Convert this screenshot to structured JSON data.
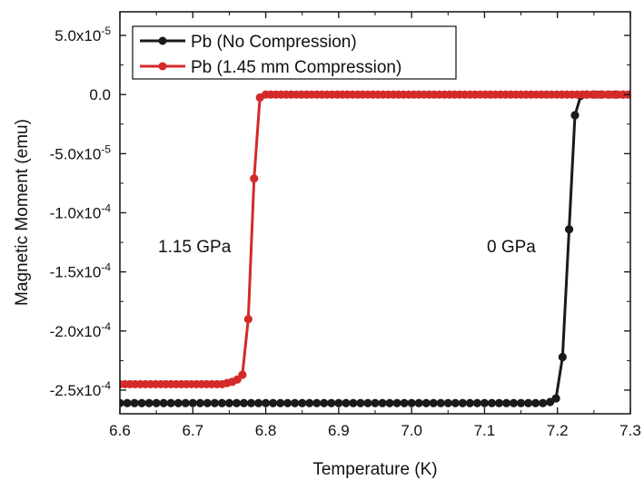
{
  "chart_data": {
    "type": "line",
    "title": "",
    "xlabel": "Temperature (K)",
    "ylabel": "Magnetic Moment (emu)",
    "xlim": [
      6.6,
      7.3
    ],
    "ylim": [
      -0.00027,
      7e-05
    ],
    "x_ticks": [
      6.6,
      6.7,
      6.8,
      6.9,
      7.0,
      7.1,
      7.2,
      7.3
    ],
    "x_tick_labels": [
      "6.6",
      "6.7",
      "6.8",
      "6.9",
      "7.0",
      "7.1",
      "7.2",
      "7.3"
    ],
    "y_ticks": [
      5e-05,
      0.0,
      -5e-05,
      -0.0001,
      -0.00015,
      -0.0002,
      -0.00025
    ],
    "y_tick_labels": [
      "5.0x10-5",
      "0.0",
      "-5.0x10-5",
      "-1.0x10-4",
      "-1.5x10-4",
      "-2.0x10-4",
      "-2.5x10-4"
    ],
    "grid": false,
    "legend_position": "top-left",
    "series": [
      {
        "name": "Pb (No Compression)",
        "color": "#1a1a1a",
        "x": [
          6.6,
          6.61,
          6.62,
          6.63,
          6.64,
          6.65,
          6.66,
          6.67,
          6.68,
          6.69,
          6.7,
          6.71,
          6.72,
          6.73,
          6.74,
          6.75,
          6.76,
          6.77,
          6.78,
          6.79,
          6.8,
          6.81,
          6.82,
          6.83,
          6.84,
          6.85,
          6.86,
          6.87,
          6.88,
          6.89,
          6.9,
          6.91,
          6.92,
          6.93,
          6.94,
          6.95,
          6.96,
          6.97,
          6.98,
          6.99,
          7.0,
          7.01,
          7.02,
          7.03,
          7.04,
          7.05,
          7.06,
          7.07,
          7.08,
          7.09,
          7.1,
          7.11,
          7.12,
          7.13,
          7.14,
          7.15,
          7.16,
          7.17,
          7.18,
          7.19,
          7.198,
          7.207,
          7.216,
          7.224,
          7.232,
          7.24,
          7.25,
          7.26,
          7.27,
          7.28,
          7.29,
          7.3
        ],
        "y": [
          -0.000261,
          -0.000261,
          -0.000261,
          -0.000261,
          -0.000261,
          -0.000261,
          -0.000261,
          -0.000261,
          -0.000261,
          -0.000261,
          -0.000261,
          -0.000261,
          -0.000261,
          -0.000261,
          -0.000261,
          -0.000261,
          -0.000261,
          -0.000261,
          -0.000261,
          -0.000261,
          -0.000261,
          -0.000261,
          -0.000261,
          -0.000261,
          -0.000261,
          -0.000261,
          -0.000261,
          -0.000261,
          -0.000261,
          -0.000261,
          -0.000261,
          -0.000261,
          -0.000261,
          -0.000261,
          -0.000261,
          -0.000261,
          -0.000261,
          -0.000261,
          -0.000261,
          -0.000261,
          -0.000261,
          -0.000261,
          -0.000261,
          -0.000261,
          -0.000261,
          -0.000261,
          -0.000261,
          -0.000261,
          -0.000261,
          -0.000261,
          -0.000261,
          -0.000261,
          -0.000261,
          -0.000261,
          -0.000261,
          -0.000261,
          -0.000261,
          -0.000261,
          -0.000261,
          -0.00026,
          -0.000257,
          -0.000222,
          -0.000114,
          -1.75e-05,
          -1e-06,
          0.0,
          0.0,
          0.0,
          0.0,
          0.0,
          0.0,
          0.0
        ]
      },
      {
        "name": "Pb (1.45 mm Compression)",
        "color": "#d42a2a",
        "x": [
          6.6,
          6.607,
          6.614,
          6.621,
          6.628,
          6.635,
          6.642,
          6.649,
          6.656,
          6.663,
          6.67,
          6.677,
          6.684,
          6.691,
          6.698,
          6.705,
          6.712,
          6.719,
          6.726,
          6.733,
          6.74,
          6.747,
          6.754,
          6.761,
          6.768,
          6.776,
          6.784,
          6.792,
          6.8,
          6.807,
          6.814,
          6.821,
          6.828,
          6.835,
          6.842,
          6.849,
          6.856,
          6.863,
          6.87,
          6.877,
          6.884,
          6.891,
          6.898,
          6.905,
          6.912,
          6.919,
          6.926,
          6.933,
          6.94,
          6.947,
          6.954,
          6.961,
          6.968,
          6.975,
          6.982,
          6.989,
          6.996,
          7.003,
          7.01,
          7.017,
          7.024,
          7.031,
          7.038,
          7.045,
          7.052,
          7.059,
          7.066,
          7.073,
          7.08,
          7.087,
          7.094,
          7.101,
          7.108,
          7.115,
          7.122,
          7.129,
          7.136,
          7.143,
          7.15,
          7.157,
          7.164,
          7.171,
          7.178,
          7.185,
          7.192,
          7.199,
          7.206,
          7.213,
          7.22,
          7.227,
          7.234,
          7.241,
          7.248,
          7.255,
          7.262,
          7.269,
          7.276,
          7.283,
          7.29,
          7.297
        ],
        "y": [
          -0.000245,
          -0.000245,
          -0.000245,
          -0.000245,
          -0.000245,
          -0.000245,
          -0.000245,
          -0.000245,
          -0.000245,
          -0.000245,
          -0.000245,
          -0.000245,
          -0.000245,
          -0.000245,
          -0.000245,
          -0.000245,
          -0.000245,
          -0.000245,
          -0.000245,
          -0.000245,
          -0.000245,
          -0.000244,
          -0.000243,
          -0.000241,
          -0.000237,
          -0.00019,
          -7.1e-05,
          -2.5e-06,
          0.0,
          0.0,
          0.0,
          0.0,
          0.0,
          0.0,
          0.0,
          0.0,
          0.0,
          0.0,
          0.0,
          0.0,
          0.0,
          0.0,
          0.0,
          0.0,
          0.0,
          0.0,
          0.0,
          0.0,
          0.0,
          0.0,
          0.0,
          0.0,
          0.0,
          0.0,
          0.0,
          0.0,
          0.0,
          0.0,
          0.0,
          0.0,
          0.0,
          0.0,
          0.0,
          0.0,
          0.0,
          0.0,
          0.0,
          0.0,
          0.0,
          0.0,
          0.0,
          0.0,
          0.0,
          0.0,
          0.0,
          0.0,
          0.0,
          0.0,
          0.0,
          0.0,
          0.0,
          0.0,
          0.0,
          0.0,
          0.0,
          0.0,
          0.0,
          0.0,
          0.0,
          0.0,
          0.0,
          0.0,
          0.0,
          0.0,
          0.0,
          0.0,
          0.0,
          0.0,
          0.0,
          0.0
        ]
      }
    ],
    "annotations": [
      {
        "text": "1.15 GPa",
        "x": 6.645,
        "y": -0.000118
      },
      {
        "text": "0 GPa",
        "x": 7.12,
        "y": -0.000118
      }
    ]
  }
}
